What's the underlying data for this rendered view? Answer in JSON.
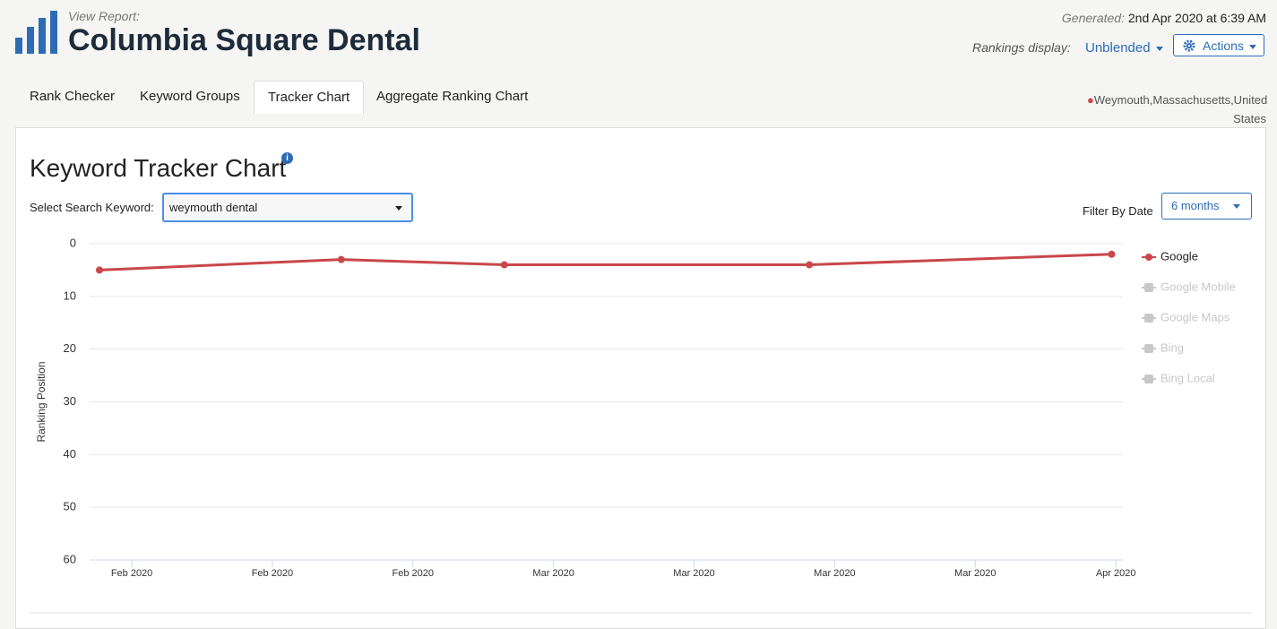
{
  "header": {
    "subtitle": "View Report:",
    "title": "Columbia Square Dental",
    "generated_label": "Generated:",
    "generated": "2nd Apr 2020 at 6:39 AM",
    "display_label": "Rankings display:",
    "display": "Unblended",
    "actions": "Actions"
  },
  "tabs": [
    "Rank Checker",
    "Keyword Groups",
    "Tracker Chart",
    "Aggregate Ranking Chart"
  ],
  "location": "Weymouth,Massachusetts,United States",
  "panel": {
    "title": "Keyword Tracker Chart",
    "keyword_label": "Select Search Keyword:",
    "keyword": "weymouth dental",
    "filter_label": "Filter By Date",
    "filter": "6 months"
  },
  "chart_data": {
    "type": "line",
    "y_label": "Ranking Position",
    "y_inverted": true,
    "ylim": [
      0,
      60
    ],
    "yticks": [
      0,
      10,
      20,
      30,
      40,
      50,
      60
    ],
    "grid": true,
    "xlim": [
      -0.3,
      7.05
    ],
    "xticks": [
      {
        "value": 0,
        "label": "Feb 2020"
      },
      {
        "value": 1,
        "label": "Feb 2020"
      },
      {
        "value": 2,
        "label": "Feb 2020"
      },
      {
        "value": 3,
        "label": "Mar 2020"
      },
      {
        "value": 4,
        "label": "Mar 2020"
      },
      {
        "value": 5,
        "label": "Mar 2020"
      },
      {
        "value": 6,
        "label": "Mar 2020"
      },
      {
        "value": 7,
        "label": "Apr 2020"
      }
    ],
    "x": [
      -0.23,
      1.49,
      2.65,
      4.82,
      6.97
    ],
    "series": [
      {
        "name": "Google",
        "color": "#c9474a",
        "values": [
          5,
          3,
          4,
          4,
          2
        ]
      }
    ],
    "hidden_series": [
      "Google Mobile",
      "Google Maps",
      "Bing",
      "Bing Local"
    ],
    "hidden_color": "#c8c8c8"
  }
}
